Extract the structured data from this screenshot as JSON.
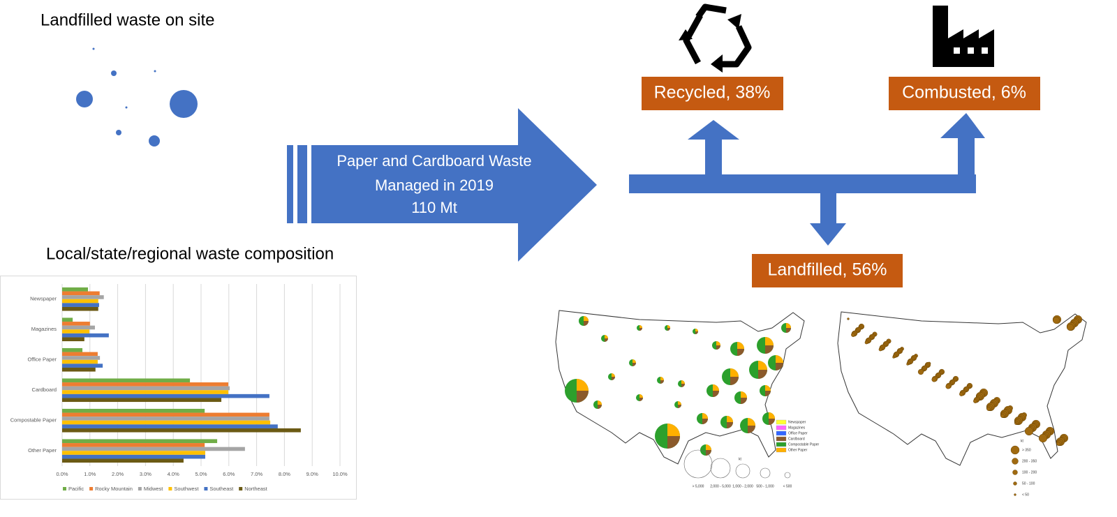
{
  "site": {
    "title": "Landfilled waste on site"
  },
  "flow": {
    "source": [
      "Paper and Cardboard Waste",
      "Managed in 2019",
      "110 Mt"
    ],
    "recycled": "Recycled, 38%",
    "combusted": "Combusted, 6%",
    "landfilled": "Landfilled, 56%"
  },
  "chart_data": {
    "type": "hbar",
    "title": "Local/state/regional waste composition",
    "categories": [
      "Newspaper",
      "Magazines",
      "Office Paper",
      "Cardboard",
      "Compostable Paper",
      "Other Paper"
    ],
    "series": [
      {
        "name": "Pacific",
        "color": "#70ad47",
        "values": [
          0.93,
          0.38,
          0.73,
          4.6,
          5.13,
          5.58
        ]
      },
      {
        "name": "Rocky Mountain",
        "color": "#ed7d31",
        "values": [
          1.35,
          1.0,
          1.28,
          5.98,
          7.46,
          5.13
        ]
      },
      {
        "name": "Midwest",
        "color": "#a5a5a5",
        "values": [
          1.5,
          1.18,
          1.36,
          6.03,
          7.46,
          6.58
        ]
      },
      {
        "name": "Southwest",
        "color": "#ffc000",
        "values": [
          1.3,
          0.98,
          1.28,
          5.98,
          7.49,
          5.15
        ]
      },
      {
        "name": "Southeast",
        "color": "#4472c4",
        "values": [
          1.33,
          1.68,
          1.46,
          7.46,
          7.76,
          5.15
        ]
      },
      {
        "name": "Northeast",
        "color": "#6b5a14",
        "values": [
          1.3,
          0.8,
          1.2,
          5.73,
          8.59,
          4.37
        ]
      }
    ],
    "xlim": [
      0,
      10
    ],
    "xticks": [
      {
        "value": 0,
        "label": "0.0%"
      },
      {
        "value": 1,
        "label": "1.0%"
      },
      {
        "value": 2,
        "label": "2.0%"
      },
      {
        "value": 3,
        "label": "3.0%"
      },
      {
        "value": 4,
        "label": "4.0%"
      },
      {
        "value": 5,
        "label": "5.0%"
      },
      {
        "value": 6,
        "label": "6.0%"
      },
      {
        "value": 7,
        "label": "7.0%"
      },
      {
        "value": 8,
        "label": "8.0%"
      },
      {
        "value": 9,
        "label": "9.0%"
      },
      {
        "value": 10,
        "label": "10.0%"
      }
    ],
    "grid": true
  },
  "maps": {
    "composition_legend": [
      "Newspaper",
      "Magazines",
      "Office Paper",
      "Cardboard",
      "Compostable Paper",
      "Other Paper"
    ],
    "composition_unit": "kt",
    "composition_sizes": [
      "> 5,000",
      "2,000 - 5,000",
      "1,000 - 2,000",
      "500 - 1,000",
      "< 500"
    ],
    "landfill_unit": "kt",
    "landfill_sizes": [
      "> 350",
      "200 - 350",
      "100 - 200",
      "50 - 100",
      "< 50"
    ]
  }
}
